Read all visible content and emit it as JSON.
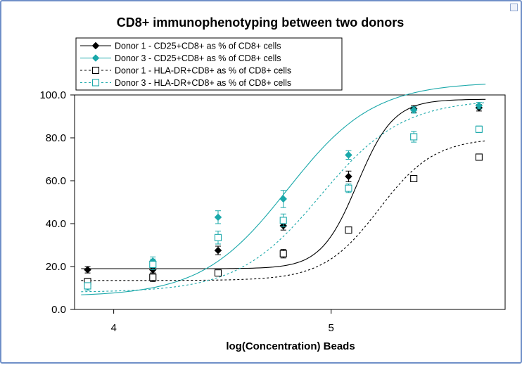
{
  "chart_data": {
    "type": "scatter",
    "title": "CD8+ immunophenotyping between two donors",
    "xlabel": "log(Concentration) Beads",
    "ylabel": "",
    "xlim": [
      3.82,
      5.8
    ],
    "ylim": [
      0,
      100
    ],
    "x_ticks": [
      4,
      5
    ],
    "x_tick_labels": [
      "4",
      "5"
    ],
    "y_ticks": [
      0,
      20,
      40,
      60,
      80,
      100
    ],
    "y_tick_labels": [
      "0.0",
      "20.0",
      "40.0",
      "60.0",
      "80.0",
      "100.0"
    ],
    "grid": false,
    "legend_position": "top-left",
    "fit": "4-parameter logistic (sigmoidal) curve per series",
    "series": [
      {
        "name": "Donor 1 - CD25+CD8+ as % of CD8+ cells",
        "color": "#000000",
        "marker": "diamond-filled",
        "line": "solid",
        "x": [
          3.88,
          4.18,
          4.48,
          4.78,
          5.08,
          5.38,
          5.68
        ],
        "y": [
          18.5,
          18.5,
          27.5,
          39,
          62,
          93.5,
          94
        ],
        "err": [
          1.5,
          1.5,
          2,
          2,
          2.5,
          1.5,
          1.5
        ],
        "fit": {
          "bottom": 19,
          "top": 98,
          "ec50": 5.12,
          "hill": 5.2
        }
      },
      {
        "name": "Donor 3 - CD25+CD8+ as % of CD8+ cells",
        "color": "#1aa8aa",
        "marker": "diamond-filled",
        "line": "solid",
        "x": [
          3.88,
          4.18,
          4.48,
          4.78,
          5.08,
          5.38,
          5.68
        ],
        "y": [
          10.5,
          22.5,
          43,
          51.5,
          72,
          93,
          95
        ],
        "err": [
          1.5,
          2,
          3,
          4,
          2,
          1.5,
          1.5
        ],
        "fit": {
          "bottom": 6,
          "top": 106,
          "ec50": 4.8,
          "hill": 2.2
        }
      },
      {
        "name": "Donor 1 - HLA-DR+CD8+ as % of CD8+ cells",
        "color": "#000000",
        "marker": "square-open",
        "line": "dashed",
        "x": [
          3.88,
          4.18,
          4.48,
          4.78,
          5.08,
          5.38,
          5.68
        ],
        "y": [
          13,
          15,
          17,
          26,
          37,
          61,
          71
        ],
        "err": [
          1.5,
          2,
          1,
          2,
          1,
          1,
          1
        ],
        "fit": {
          "bottom": 13.5,
          "top": 80,
          "ec50": 5.22,
          "hill": 3.4
        }
      },
      {
        "name": "Donor 3 - HLA-DR+CD8+ as % of CD8+ cells",
        "color": "#1aa8aa",
        "marker": "square-open",
        "line": "dashed",
        "x": [
          3.88,
          4.18,
          4.48,
          4.78,
          5.08,
          5.38,
          5.68
        ],
        "y": [
          11,
          21,
          33.5,
          41.5,
          56.5,
          80.5,
          84
        ],
        "err": [
          1,
          2.5,
          3,
          3,
          2,
          2.5,
          1.5
        ],
        "fit": {
          "bottom": 8,
          "top": 98,
          "ec50": 4.95,
          "hill": 2.3
        }
      }
    ]
  }
}
